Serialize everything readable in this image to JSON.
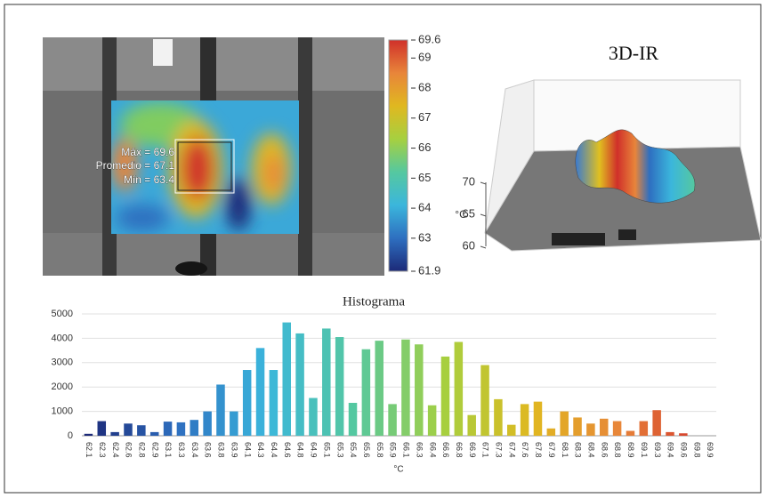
{
  "chart_data": [
    {
      "type": "heatmap",
      "annotations": [
        "Máx = 69.6",
        "Promedio = 67.1",
        "Mín = 63.4"
      ],
      "clim": [
        61.9,
        69.6
      ],
      "cticks": [
        69.6,
        69,
        68,
        67,
        66,
        65,
        64,
        63,
        61.9
      ],
      "colormap": [
        "#1c2a78",
        "#2e6fc0",
        "#3bb6dc",
        "#55c8a0",
        "#a6d040",
        "#e0b820",
        "#e8853a",
        "#d0302a"
      ]
    },
    {
      "type": "surface3d",
      "title": "3D-IR",
      "zlabel": "°C",
      "zlim": [
        60,
        70
      ],
      "zticks": [
        60,
        65,
        70
      ]
    },
    {
      "type": "bar",
      "title": "Histograma",
      "xlabel": "°C",
      "categories": [
        "62.1",
        "62.3",
        "62.4",
        "62.6",
        "62.8",
        "62.9",
        "63.1",
        "63.3",
        "63.4",
        "63.6",
        "63.8",
        "63.9",
        "64.1",
        "64.3",
        "64.4",
        "64.6",
        "64.8",
        "64.9",
        "65.1",
        "65.3",
        "65.4",
        "65.6",
        "65.8",
        "65.9",
        "66.1",
        "66.3",
        "66.4",
        "66.6",
        "66.8",
        "66.9",
        "67.1",
        "67.3",
        "67.4",
        "67.6",
        "67.8",
        "67.9",
        "68.1",
        "68.3",
        "68.4",
        "68.6",
        "68.8",
        "68.9",
        "69.1",
        "69.3",
        "69.4",
        "69.6",
        "69.8",
        "69.9"
      ],
      "values": [
        80,
        600,
        150,
        500,
        430,
        150,
        580,
        550,
        650,
        1000,
        2100,
        1000,
        2700,
        3600,
        2700,
        4650,
        4200,
        1550,
        4400,
        4050,
        1350,
        3550,
        3900,
        1300,
        3950,
        3750,
        1250,
        3250,
        3850,
        850,
        2900,
        1500,
        450,
        1300,
        1400,
        300,
        1000,
        750,
        500,
        700,
        600,
        200,
        600,
        1050,
        150,
        100,
        0,
        0
      ],
      "colormap": [
        "#1c2a78",
        "#2e6fc0",
        "#3bb6dc",
        "#55c8a0",
        "#a6d040",
        "#e0b820",
        "#e8853a",
        "#d0302a"
      ],
      "ylim": [
        0,
        5000
      ],
      "yticks": [
        0,
        1000,
        2000,
        3000,
        4000,
        5000
      ],
      "grid": true
    }
  ]
}
